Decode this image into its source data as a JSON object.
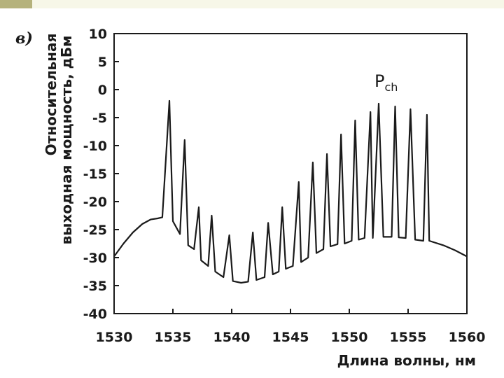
{
  "header": {
    "accent_color": "#b5b27c",
    "bar_color": "#f7f7e8"
  },
  "chart_data": {
    "type": "line",
    "panel_label": "в)",
    "xlabel": "Длина волны, нм",
    "ylabel_line1": "Относительная",
    "ylabel_line2": "выходная мощность, дБм",
    "xlim": [
      1530,
      1560
    ],
    "ylim": [
      -40,
      10
    ],
    "xticks": [
      1530,
      1535,
      1540,
      1545,
      1550,
      1555,
      1560
    ],
    "yticks": [
      10,
      5,
      0,
      -5,
      -10,
      -15,
      -20,
      -25,
      -30,
      -35,
      -40
    ],
    "grid": false,
    "annotation": {
      "text": "P",
      "subscript": "ch",
      "x": 1552.5,
      "y": 0.5
    },
    "series": [
      {
        "color": "#1a1a1a",
        "points": [
          [
            1530.0,
            -29.8
          ],
          [
            1530.8,
            -27.5
          ],
          [
            1531.6,
            -25.5
          ],
          [
            1532.4,
            -24.0
          ],
          [
            1533.1,
            -23.2
          ],
          [
            1533.7,
            -23.0
          ],
          [
            1534.1,
            -22.8
          ],
          [
            1534.7,
            -2.0
          ],
          [
            1535.0,
            -23.5
          ],
          [
            1535.6,
            -25.8
          ],
          [
            1536.0,
            -9.0
          ],
          [
            1536.3,
            -27.8
          ],
          [
            1536.8,
            -28.5
          ],
          [
            1537.2,
            -21.0
          ],
          [
            1537.4,
            -30.5
          ],
          [
            1538.0,
            -31.5
          ],
          [
            1538.3,
            -22.5
          ],
          [
            1538.6,
            -32.5
          ],
          [
            1539.3,
            -33.5
          ],
          [
            1539.8,
            -26.0
          ],
          [
            1540.1,
            -34.2
          ],
          [
            1540.8,
            -34.5
          ],
          [
            1541.4,
            -34.3
          ],
          [
            1541.8,
            -25.5
          ],
          [
            1542.1,
            -34.0
          ],
          [
            1542.8,
            -33.5
          ],
          [
            1543.1,
            -23.8
          ],
          [
            1543.5,
            -33.0
          ],
          [
            1544.0,
            -32.5
          ],
          [
            1544.3,
            -21.0
          ],
          [
            1544.6,
            -32.0
          ],
          [
            1545.2,
            -31.5
          ],
          [
            1545.7,
            -16.5
          ],
          [
            1545.9,
            -30.8
          ],
          [
            1546.5,
            -30.0
          ],
          [
            1546.9,
            -13.0
          ],
          [
            1547.2,
            -29.2
          ],
          [
            1547.8,
            -28.5
          ],
          [
            1548.1,
            -11.5
          ],
          [
            1548.4,
            -28.0
          ],
          [
            1549.0,
            -27.6
          ],
          [
            1549.3,
            -8.0
          ],
          [
            1549.6,
            -27.5
          ],
          [
            1550.2,
            -27.0
          ],
          [
            1550.5,
            -5.5
          ],
          [
            1550.8,
            -26.8
          ],
          [
            1551.3,
            -26.5
          ],
          [
            1551.8,
            -4.0
          ],
          [
            1552.0,
            -26.5
          ],
          [
            1552.5,
            -2.5
          ],
          [
            1552.9,
            -26.3
          ],
          [
            1553.6,
            -26.3
          ],
          [
            1553.9,
            -3.0
          ],
          [
            1554.2,
            -26.4
          ],
          [
            1554.8,
            -26.5
          ],
          [
            1555.2,
            -3.5
          ],
          [
            1555.6,
            -26.8
          ],
          [
            1556.3,
            -27.0
          ],
          [
            1556.6,
            -4.5
          ],
          [
            1556.8,
            -27.0
          ],
          [
            1558.0,
            -27.8
          ],
          [
            1559.0,
            -28.7
          ],
          [
            1560.0,
            -29.8
          ]
        ]
      }
    ]
  }
}
